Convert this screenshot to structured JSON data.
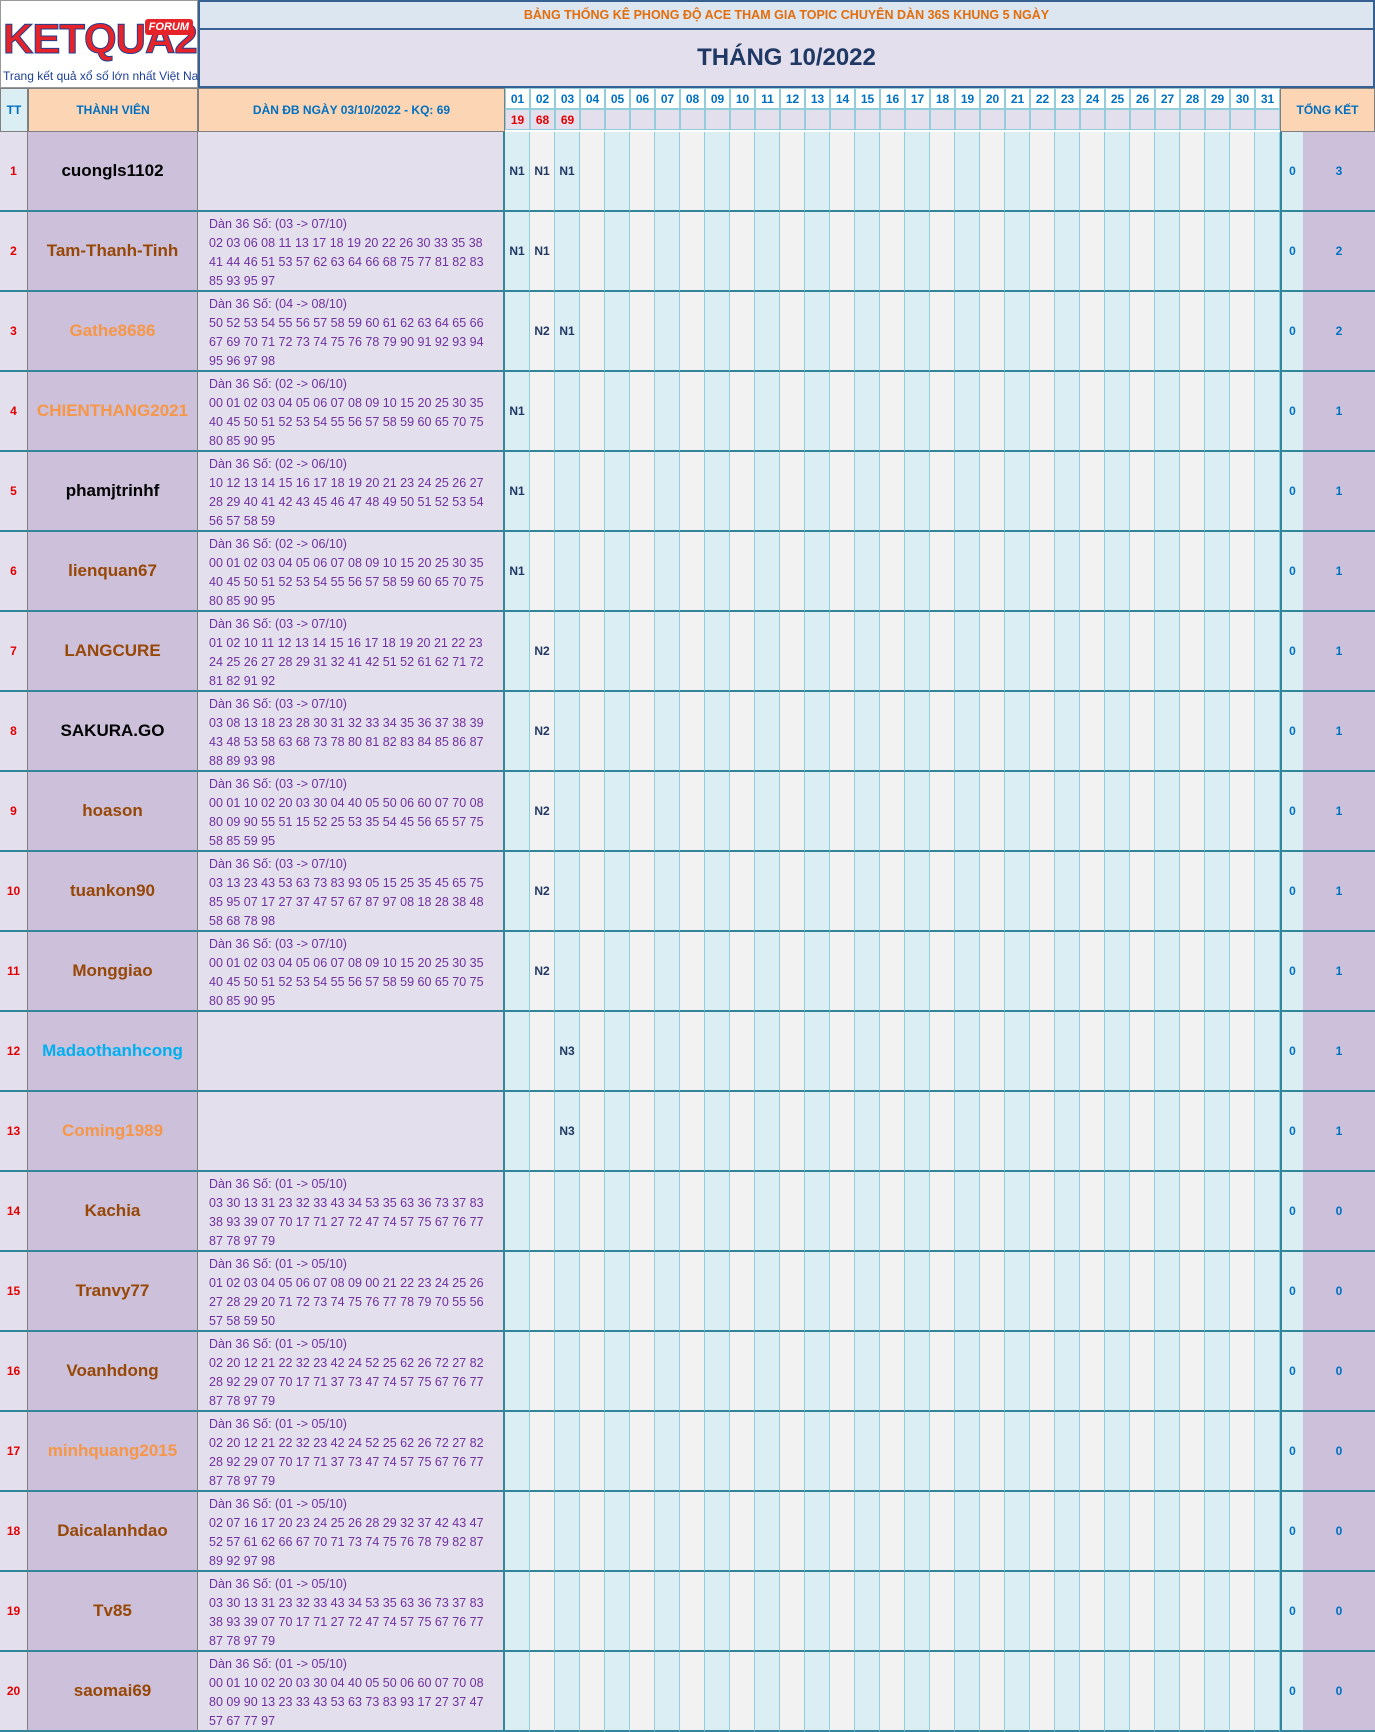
{
  "logo": {
    "name": "KETQUA2",
    "badge": "FORUM",
    "tagline": "Trang kết quả xổ số lớn nhất Việt Nam"
  },
  "header": {
    "title": "BẢNG THỐNG KÊ PHONG ĐỘ ACE THAM GIA TOPIC CHUYÊN DÀN 36S KHUNG 5 NGÀY",
    "month": "THÁNG 10/2022"
  },
  "table": {
    "columns": {
      "tt": "TT",
      "member": "THÀNH VIÊN",
      "dan": "DÀN ĐB NGÀY 03/10/2022 - KQ: 69",
      "total": "TỔNG KẾT"
    },
    "days": [
      "01",
      "02",
      "03",
      "04",
      "05",
      "06",
      "07",
      "08",
      "09",
      "10",
      "11",
      "12",
      "13",
      "14",
      "15",
      "16",
      "17",
      "18",
      "19",
      "20",
      "21",
      "22",
      "23",
      "24",
      "25",
      "26",
      "27",
      "28",
      "29",
      "30",
      "31"
    ],
    "results": [
      "19",
      "68",
      "69"
    ],
    "rows": [
      {
        "tt": 1,
        "name": "cuongls1102",
        "name_color": "#000000",
        "marks": [
          "N1",
          "N1",
          "N1"
        ],
        "total_a": 0,
        "total_b": 3
      },
      {
        "tt": 2,
        "name": "Tam-Thanh-Tinh",
        "name_color": "#974706",
        "dan_title": "Dàn 36 Số: (03 -> 07/10)",
        "dan_numbers": "02 03 06 08 11 13 17 18 19 20 22 26 30 33 35 38 41 44 46 51 53 57 62 63 64 66 68 75 77 81 82 83 85 93 95 97",
        "marks": [
          "N1",
          "N1"
        ],
        "total_a": 0,
        "total_b": 2
      },
      {
        "tt": 3,
        "name": "Gathe8686",
        "name_color": "#f79646",
        "dan_title": "Dàn 36 Số: (04 -> 08/10)",
        "dan_numbers": "50 52 53 54 55 56 57 58 59 60 61 62 63 64 65 66 67 69 70 71 72 73 74 75 76 78 79 90 91 92 93 94 95 96 97 98",
        "marks": [
          null,
          "N2",
          "N1"
        ],
        "total_a": 0,
        "total_b": 2
      },
      {
        "tt": 4,
        "name": "CHIENTHANG2021",
        "name_color": "#f79646",
        "dan_title": "Dàn 36 Số: (02 -> 06/10)",
        "dan_numbers": "00 01 02 03 04 05 06 07 08 09 10 15 20 25 30 35 40 45 50 51 52 53 54 55 56 57 58 59 60 65 70 75 80 85 90 95",
        "marks": [
          "N1"
        ],
        "total_a": 0,
        "total_b": 1
      },
      {
        "tt": 5,
        "name": "phamjtrinhf",
        "name_color": "#000000",
        "dan_title": "Dàn 36 Số: (02 -> 06/10)",
        "dan_numbers": "10 12 13 14 15 16 17 18 19 20 21 23 24 25 26 27 28 29 40 41 42 43 45 46 47 48 49 50 51 52 53 54 56 57 58 59",
        "marks": [
          "N1"
        ],
        "total_a": 0,
        "total_b": 1
      },
      {
        "tt": 6,
        "name": "lienquan67",
        "name_color": "#974706",
        "dan_title": "Dàn 36 Số: (02 -> 06/10)",
        "dan_numbers": "00 01 02 03 04 05 06 07 08 09 10 15 20 25 30 35 40 45 50 51 52 53 54 55 56 57 58 59 60 65 70 75 80 85 90 95",
        "marks": [
          "N1"
        ],
        "total_a": 0,
        "total_b": 1
      },
      {
        "tt": 7,
        "name": "LANGCURE",
        "name_color": "#974706",
        "dan_title": "Dàn 36 Số: (03 -> 07/10)",
        "dan_numbers": "01 02 10 11 12 13 14 15 16 17 18 19 20 21 22 23 24 25 26 27 28 29 31 32 41 42 51 52 61 62 71 72 81 82 91 92",
        "marks": [
          null,
          "N2"
        ],
        "total_a": 0,
        "total_b": 1
      },
      {
        "tt": 8,
        "name": "SAKURA.GO",
        "name_color": "#000000",
        "dan_title": "Dàn 36 Số: (03 -> 07/10)",
        "dan_numbers": "03 08 13 18 23 28 30 31 32 33 34 35 36 37 38 39 43 48 53 58 63 68 73 78 80 81 82 83 84 85 86 87 88 89 93 98",
        "marks": [
          null,
          "N2"
        ],
        "total_a": 0,
        "total_b": 1
      },
      {
        "tt": 9,
        "name": "hoason",
        "name_color": "#974706",
        "dan_title": "Dàn 36 Số: (03 -> 07/10)",
        "dan_numbers": "00 01 10 02 20 03 30 04 40 05 50 06 60 07 70 08 80 09 90 55 51 15 52 25 53 35 54 45 56 65 57 75 58 85 59 95",
        "marks": [
          null,
          "N2"
        ],
        "total_a": 0,
        "total_b": 1
      },
      {
        "tt": 10,
        "name": "tuankon90",
        "name_color": "#974706",
        "dan_title": "Dàn 36 Số: (03 -> 07/10)",
        "dan_numbers": "03 13 23 43 53 63 73 83 93 05 15 25 35 45 65 75 85 95 07 17 27 37 47 57 67 87 97 08 18 28 38 48 58 68 78 98",
        "marks": [
          null,
          "N2"
        ],
        "total_a": 0,
        "total_b": 1
      },
      {
        "tt": 11,
        "name": "Monggiao",
        "name_color": "#974706",
        "dan_title": "Dàn 36 Số: (03 -> 07/10)",
        "dan_numbers": "00 01 02 03 04 05 06 07 08 09 10 15 20 25 30 35 40 45 50 51 52 53 54 55 56 57 58 59 60 65 70 75 80 85 90 95",
        "marks": [
          null,
          "N2"
        ],
        "total_a": 0,
        "total_b": 1
      },
      {
        "tt": 12,
        "name": "Madaothanhcong",
        "name_color": "#00b0f0",
        "marks": [
          null,
          null,
          "N3"
        ],
        "total_a": 0,
        "total_b": 1
      },
      {
        "tt": 13,
        "name": "Coming1989",
        "name_color": "#f79646",
        "marks": [
          null,
          null,
          "N3"
        ],
        "total_a": 0,
        "total_b": 1
      },
      {
        "tt": 14,
        "name": "Kachia",
        "name_color": "#974706",
        "dan_title": "Dàn 36 Số: (01 -> 05/10)",
        "dan_numbers": "03 30 13 31 23 32 33 43 34 53 35 63 36 73 37 83 38 93 39 07 70 17 71 27 72 47 74 57 75 67 76 77 87 78 97 79",
        "marks": [],
        "total_a": 0,
        "total_b": 0
      },
      {
        "tt": 15,
        "name": "Tranvy77",
        "name_color": "#974706",
        "dan_title": "Dàn 36 Số: (01 -> 05/10)",
        "dan_numbers": "01 02 03 04 05 06 07 08 09 00 21 22 23 24 25 26 27 28 29 20 71 72 73 74 75 76 77 78 79 70 55 56 57 58 59 50",
        "marks": [],
        "total_a": 0,
        "total_b": 0
      },
      {
        "tt": 16,
        "name": "Voanhdong",
        "name_color": "#974706",
        "dan_title": "Dàn 36 Số: (01 -> 05/10)",
        "dan_numbers": "02 20 12 21 22 32 23 42 24 52 25 62 26 72 27 82 28 92 29 07 70 17 71 37 73 47 74 57 75 67 76 77 87 78 97 79",
        "marks": [],
        "total_a": 0,
        "total_b": 0
      },
      {
        "tt": 17,
        "name": "minhquang2015",
        "name_color": "#f79646",
        "dan_title": "Dàn 36 Số: (01 -> 05/10)",
        "dan_numbers": "02 20 12 21 22 32 23 42 24 52 25 62 26 72 27 82 28 92 29 07 70 17 71 37 73 47 74 57 75 67 76 77 87 78 97 79",
        "marks": [],
        "total_a": 0,
        "total_b": 0
      },
      {
        "tt": 18,
        "name": "Daicalanhdao",
        "name_color": "#974706",
        "dan_title": "Dàn 36 Số: (01 -> 05/10)",
        "dan_numbers": "02 07 16 17 20 23 24 25 26 28 29 32 37 42 43 47 52 57 61 62 66 67 70 71 73 74 75 76 78 79 82 87 89 92 97 98",
        "marks": [],
        "total_a": 0,
        "total_b": 0
      },
      {
        "tt": 19,
        "name": "Tv85",
        "name_color": "#974706",
        "dan_title": "Dàn 36 Số: (01 -> 05/10)",
        "dan_numbers": "03 30 13 31 23 32 33 43 34 53 35 63 36 73 37 83 38 93 39 07 70 17 71 27 72 47 74 57 75 67 76 77 87 78 97 79",
        "marks": [],
        "total_a": 0,
        "total_b": 0
      },
      {
        "tt": 20,
        "name": "saomai69",
        "name_color": "#974706",
        "dan_title": "Dàn 36 Số: (01 -> 05/10)",
        "dan_numbers": "00 01 10 02 20 03 30 04 40 05 50 06 60 07 70 08 80 09 90 13 23 33 43 53 63 73 83 93 17 27 37 47 57 67 77 97",
        "marks": [],
        "total_a": 0,
        "total_b": 0
      }
    ]
  }
}
